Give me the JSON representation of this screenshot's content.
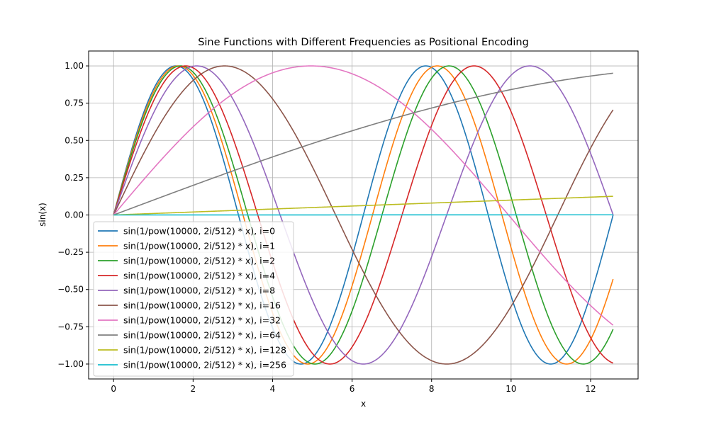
{
  "chart_data": {
    "type": "line",
    "title": "Sine Functions with Different Frequencies as Positional Encoding",
    "xlabel": "x",
    "ylabel": "sin(x)",
    "xlim": [
      -0.628,
      13.195
    ],
    "ylim": [
      -1.1,
      1.1
    ],
    "x_range": [
      0,
      12.566
    ],
    "x_ticks": [
      0,
      2,
      4,
      6,
      8,
      10,
      12
    ],
    "x_tick_labels": [
      "0",
      "2",
      "4",
      "6",
      "8",
      "10",
      "12"
    ],
    "y_ticks": [
      1.0,
      0.75,
      0.5,
      0.25,
      0.0,
      -0.25,
      -0.5,
      -0.75,
      -1.0
    ],
    "y_tick_labels": [
      "1.00",
      "0.75",
      "0.50",
      "0.25",
      "0.00",
      "−0.25",
      "−0.50",
      "−0.75",
      "−1.00"
    ],
    "grid": true,
    "legend_position": "lower-left",
    "formula": "y = sin(x / pow(10000, 2i/512))",
    "d_model": 512,
    "series": [
      {
        "name": "sin(1/pow(10000, 2i/512) * x), i=0",
        "i": 0,
        "color": "#1f77b4"
      },
      {
        "name": "sin(1/pow(10000, 2i/512) * x), i=1",
        "i": 1,
        "color": "#ff7f0e"
      },
      {
        "name": "sin(1/pow(10000, 2i/512) * x), i=2",
        "i": 2,
        "color": "#2ca02c"
      },
      {
        "name": "sin(1/pow(10000, 2i/512) * x), i=4",
        "i": 4,
        "color": "#d62728"
      },
      {
        "name": "sin(1/pow(10000, 2i/512) * x), i=8",
        "i": 8,
        "color": "#9467bd"
      },
      {
        "name": "sin(1/pow(10000, 2i/512) * x), i=16",
        "i": 16,
        "color": "#8c564b"
      },
      {
        "name": "sin(1/pow(10000, 2i/512) * x), i=32",
        "i": 32,
        "color": "#e377c2"
      },
      {
        "name": "sin(1/pow(10000, 2i/512) * x), i=64",
        "i": 64,
        "color": "#7f7f7f"
      },
      {
        "name": "sin(1/pow(10000, 2i/512) * x), i=128",
        "i": 128,
        "color": "#bcbd22"
      },
      {
        "name": "sin(1/pow(10000, 2i/512) * x), i=256",
        "i": 256,
        "color": "#17becf"
      }
    ]
  }
}
